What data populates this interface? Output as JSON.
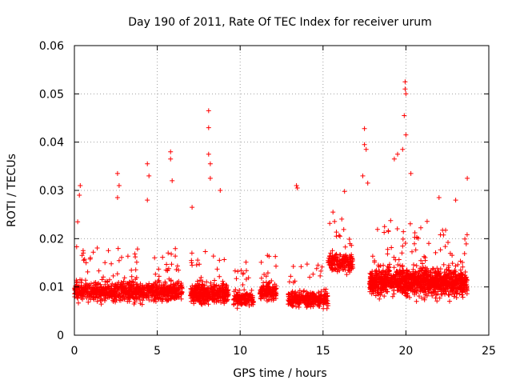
{
  "chart_data": {
    "type": "scatter",
    "title": "Day 190 of 2011, Rate Of TEC Index for receiver urum",
    "xlabel": "GPS time / hours",
    "ylabel": "ROTI / TECUs",
    "xlim": [
      0,
      25
    ],
    "ylim": [
      0,
      0.06
    ],
    "xticks": [
      "0",
      "5",
      "10",
      "15",
      "20",
      "25"
    ],
    "yticks": [
      "0",
      "0.01",
      "0.02",
      "0.03",
      "0.04",
      "0.05",
      "0.06"
    ],
    "grid": true,
    "marker": "+",
    "color": "#ff0000",
    "clusters": [
      {
        "x_start": 0.0,
        "x_end": 6.5,
        "y_center": 0.009,
        "y_spread": 0.004,
        "density": 900
      },
      {
        "x_start": 7.0,
        "x_end": 9.3,
        "y_center": 0.0085,
        "y_spread": 0.004,
        "density": 380
      },
      {
        "x_start": 9.6,
        "x_end": 10.8,
        "y_center": 0.0075,
        "y_spread": 0.003,
        "density": 160
      },
      {
        "x_start": 11.2,
        "x_end": 12.2,
        "y_center": 0.009,
        "y_spread": 0.0035,
        "density": 150
      },
      {
        "x_start": 12.9,
        "x_end": 15.3,
        "y_center": 0.0075,
        "y_spread": 0.003,
        "density": 320
      },
      {
        "x_start": 15.3,
        "x_end": 16.8,
        "y_center": 0.015,
        "y_spread": 0.004,
        "density": 170
      },
      {
        "x_start": 17.8,
        "x_end": 23.7,
        "y_center": 0.011,
        "y_spread": 0.0055,
        "density": 1200
      }
    ],
    "outliers": [
      {
        "x": 0.2,
        "y": 0.0235
      },
      {
        "x": 0.3,
        "y": 0.029
      },
      {
        "x": 0.35,
        "y": 0.031
      },
      {
        "x": 2.6,
        "y": 0.0335
      },
      {
        "x": 2.6,
        "y": 0.0285
      },
      {
        "x": 2.7,
        "y": 0.031
      },
      {
        "x": 4.4,
        "y": 0.0355
      },
      {
        "x": 4.5,
        "y": 0.033
      },
      {
        "x": 4.4,
        "y": 0.028
      },
      {
        "x": 5.8,
        "y": 0.038
      },
      {
        "x": 5.8,
        "y": 0.0365
      },
      {
        "x": 5.9,
        "y": 0.032
      },
      {
        "x": 8.1,
        "y": 0.0465
      },
      {
        "x": 8.1,
        "y": 0.043
      },
      {
        "x": 8.1,
        "y": 0.0375
      },
      {
        "x": 8.2,
        "y": 0.0355
      },
      {
        "x": 8.2,
        "y": 0.0325
      },
      {
        "x": 7.1,
        "y": 0.0265
      },
      {
        "x": 8.8,
        "y": 0.03
      },
      {
        "x": 13.4,
        "y": 0.031
      },
      {
        "x": 13.45,
        "y": 0.0305
      },
      {
        "x": 15.6,
        "y": 0.0255
      },
      {
        "x": 16.3,
        "y": 0.0298
      },
      {
        "x": 17.4,
        "y": 0.033
      },
      {
        "x": 17.5,
        "y": 0.0428
      },
      {
        "x": 17.5,
        "y": 0.0395
      },
      {
        "x": 17.6,
        "y": 0.0385
      },
      {
        "x": 17.7,
        "y": 0.0315
      },
      {
        "x": 19.3,
        "y": 0.0365
      },
      {
        "x": 19.5,
        "y": 0.0375
      },
      {
        "x": 19.8,
        "y": 0.0385
      },
      {
        "x": 19.9,
        "y": 0.0455
      },
      {
        "x": 19.95,
        "y": 0.0525
      },
      {
        "x": 19.95,
        "y": 0.051
      },
      {
        "x": 20.0,
        "y": 0.05
      },
      {
        "x": 20.0,
        "y": 0.0415
      },
      {
        "x": 20.3,
        "y": 0.0335
      },
      {
        "x": 22.0,
        "y": 0.0285
      },
      {
        "x": 23.0,
        "y": 0.028
      },
      {
        "x": 23.7,
        "y": 0.0325
      },
      {
        "x": 17.9,
        "y": 0.0098
      },
      {
        "x": 18.4,
        "y": 0.0075
      }
    ]
  }
}
